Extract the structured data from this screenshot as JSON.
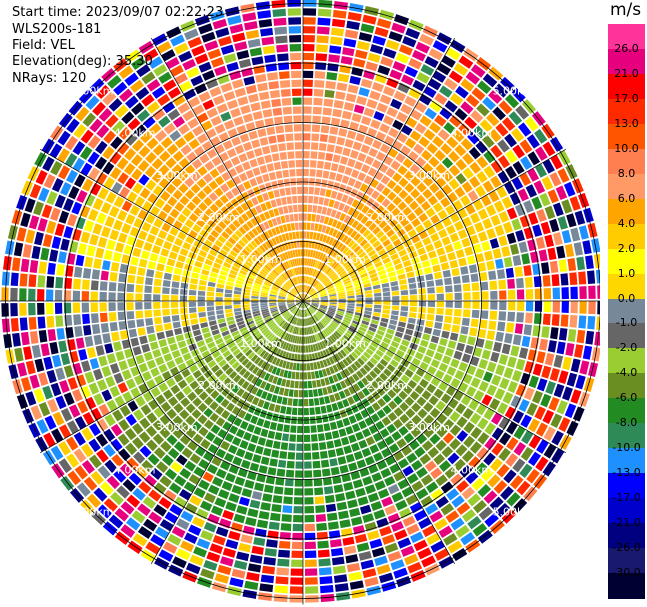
{
  "header": {
    "start_time": "Start time: 2023/09/07 02:22:23",
    "instrument": "WLS200s-181",
    "field": "Field: VEL",
    "elevation": "Elevation(deg): 35.30",
    "nrays": "NRays: 120"
  },
  "colorbar": {
    "unit": "m/s",
    "ticks": [
      "26.0",
      "21.0",
      "17.0",
      "13.0",
      "10.0",
      "8.0",
      "6.0",
      "4.0",
      "2.0",
      "1.0",
      "0.0",
      "-1.0",
      "-2.0",
      "-4.0",
      "-6.0",
      "-8.0",
      "-10.0",
      "-13.0",
      "-17.0",
      "-21.0",
      "-26.0",
      "-30.0"
    ],
    "colors": [
      "#ff3399",
      "#e6007e",
      "#ff0000",
      "#ff2a00",
      "#ff5500",
      "#ff7f50",
      "#ff9966",
      "#ffa500",
      "#ffcc00",
      "#ffff00",
      "#ffd700",
      "#778899",
      "#666666",
      "#9acd32",
      "#6b8e23",
      "#228b22",
      "#2e8b57",
      "#1e90ff",
      "#0000ff",
      "#0000cd",
      "#000080",
      "#191970",
      "#000033"
    ]
  },
  "chart_data": {
    "type": "heatmap",
    "title": "",
    "field": "VEL",
    "unit": "m/s",
    "rays": 120,
    "range_rings_km": [
      1.0,
      2.0,
      3.0,
      4.0,
      5.0
    ],
    "range_ring_labels": [
      "1.00km",
      "2.00km",
      "3.00km",
      "4.00km",
      "5.00km"
    ],
    "max_range_km": 5.1,
    "vmin": -30.0,
    "vmax": 26.0,
    "pattern": "dipole: positive (toward 0-180° north sector, peak ~6-8 m/s), negative (south sector, peak ~-4 to -8 m/s), near zero at east-west, noisy beyond ~3.8 km"
  }
}
